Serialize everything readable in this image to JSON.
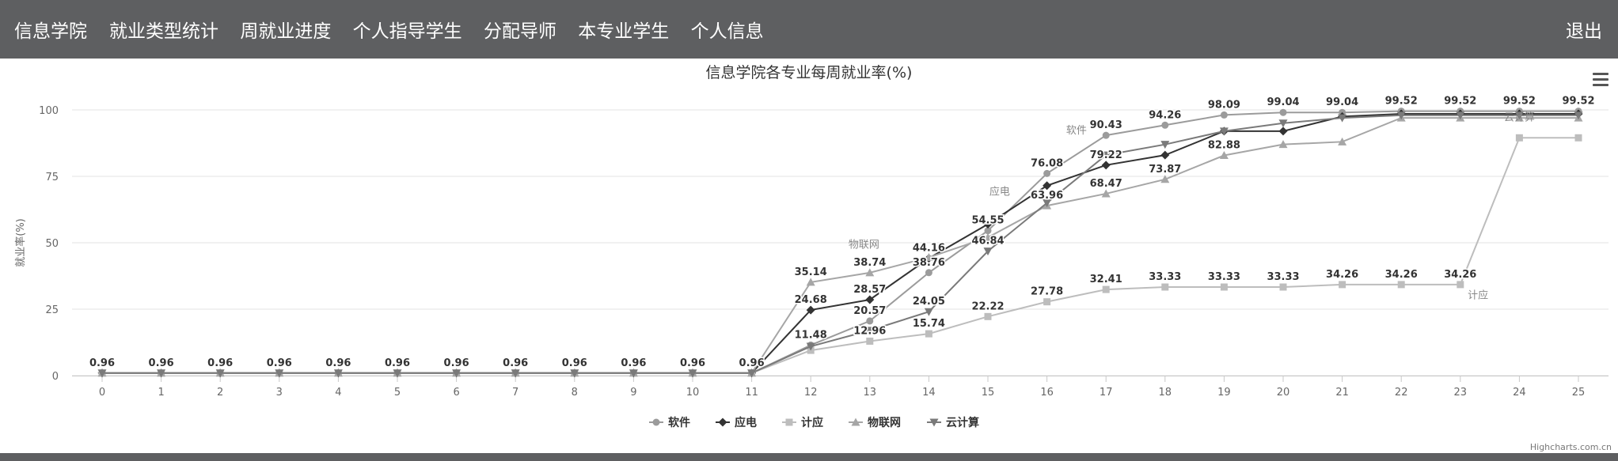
{
  "nav": {
    "brand": "信息学院",
    "items": [
      "就业类型统计",
      "周就业进度",
      "个人指导学生",
      "分配导师",
      "本专业学生",
      "个人信息"
    ],
    "logout": "退出"
  },
  "credits": "Highcharts.com.cn",
  "chart_data": {
    "type": "line",
    "title": "信息学院各专业每周就业率(%)",
    "xlabel": "",
    "ylabel": "就业率(%)",
    "ylim": [
      0,
      100
    ],
    "yticks": [
      0,
      25,
      50,
      75,
      100
    ],
    "x": [
      0,
      1,
      2,
      3,
      4,
      5,
      6,
      7,
      8,
      9,
      10,
      11,
      12,
      13,
      14,
      15,
      16,
      17,
      18,
      19,
      20,
      21,
      22,
      23,
      24,
      25
    ],
    "grid": true,
    "legend_position": "bottom-center",
    "series": [
      {
        "name": "软件",
        "color": "#9b9b9b",
        "marker": "circle",
        "values": [
          0.96,
          0.96,
          0.96,
          0.96,
          0.96,
          0.96,
          0.96,
          0.96,
          0.96,
          0.96,
          0.96,
          0.96,
          11.48,
          20.57,
          38.76,
          54.55,
          76.08,
          90.43,
          94.26,
          98.09,
          99.04,
          99.04,
          99.52,
          99.52,
          99.52,
          99.52
        ]
      },
      {
        "name": "应电",
        "color": "#333333",
        "marker": "diamond",
        "values": [
          0.96,
          0.96,
          0.96,
          0.96,
          0.96,
          0.96,
          0.96,
          0.96,
          0.96,
          0.96,
          0.96,
          0.96,
          24.68,
          28.57,
          44.16,
          57.0,
          71.5,
          79.22,
          83.0,
          92.0,
          92.0,
          97.5,
          98.5,
          98.5,
          98.5,
          98.5
        ]
      },
      {
        "name": "计应",
        "color": "#bdbdbd",
        "marker": "square",
        "values": [
          0.96,
          0.96,
          0.96,
          0.96,
          0.96,
          0.96,
          0.96,
          0.96,
          0.96,
          0.96,
          0.96,
          0.96,
          9.5,
          12.96,
          15.74,
          22.22,
          27.78,
          32.41,
          33.33,
          33.33,
          33.33,
          34.26,
          34.26,
          34.26,
          89.5,
          89.5
        ]
      },
      {
        "name": "物联网",
        "color": "#a6a6a6",
        "marker": "triangle",
        "values": [
          0.96,
          0.96,
          0.96,
          0.96,
          0.96,
          0.96,
          0.96,
          0.96,
          0.96,
          0.96,
          0.96,
          0.96,
          35.14,
          38.74,
          44.5,
          52.0,
          63.96,
          68.47,
          73.87,
          82.88,
          87.0,
          88.0,
          97.0,
          97.0,
          97.0,
          97.0
        ]
      },
      {
        "name": "云计算",
        "color": "#7a7a7a",
        "marker": "triangle-down",
        "values": [
          0.96,
          0.96,
          0.96,
          0.96,
          0.96,
          0.96,
          0.96,
          0.96,
          0.96,
          0.96,
          0.96,
          0.96,
          11.0,
          17.0,
          24.05,
          46.84,
          65.0,
          83.0,
          87.0,
          92.0,
          95.0,
          97.0,
          98.0,
          98.0,
          98.0,
          98.0
        ]
      }
    ],
    "data_labels": [
      {
        "x": 0,
        "text": "0.96",
        "value": 0.96
      },
      {
        "x": 1,
        "text": "0.96",
        "value": 0.96
      },
      {
        "x": 2,
        "text": "0.96",
        "value": 0.96
      },
      {
        "x": 3,
        "text": "0.96",
        "value": 0.96
      },
      {
        "x": 4,
        "text": "0.96",
        "value": 0.96
      },
      {
        "x": 5,
        "text": "0.96",
        "value": 0.96
      },
      {
        "x": 6,
        "text": "0.96",
        "value": 0.96
      },
      {
        "x": 7,
        "text": "0.96",
        "value": 0.96
      },
      {
        "x": 8,
        "text": "0.96",
        "value": 0.96
      },
      {
        "x": 9,
        "text": "0.96",
        "value": 0.96
      },
      {
        "x": 10,
        "text": "0.96",
        "value": 0.96
      },
      {
        "x": 11,
        "text": "0.96",
        "value": 0.96
      },
      {
        "x": 12,
        "text": "35.14",
        "value": 35.14
      },
      {
        "x": 12,
        "text": "24.68",
        "value": 24.68
      },
      {
        "x": 12,
        "text": "11.48",
        "value": 11.48
      },
      {
        "x": 13,
        "text": "38.74",
        "value": 38.74
      },
      {
        "x": 13,
        "text": "28.57",
        "value": 28.57
      },
      {
        "x": 13,
        "text": "20.57",
        "value": 20.57
      },
      {
        "x": 13,
        "text": "12.96",
        "value": 12.96
      },
      {
        "x": 14,
        "text": "44.16",
        "value": 44.16
      },
      {
        "x": 14,
        "text": "38.76",
        "value": 38.76
      },
      {
        "x": 14,
        "text": "24.05",
        "value": 24.05
      },
      {
        "x": 14,
        "text": "15.74",
        "value": 15.74
      },
      {
        "x": 15,
        "text": "54.55",
        "value": 54.55
      },
      {
        "x": 15,
        "text": "46.84",
        "value": 46.84
      },
      {
        "x": 15,
        "text": "22.22",
        "value": 22.22
      },
      {
        "x": 16,
        "text": "76.08",
        "value": 76.08
      },
      {
        "x": 16,
        "text": "63.96",
        "value": 63.96
      },
      {
        "x": 16,
        "text": "27.78",
        "value": 27.78
      },
      {
        "x": 17,
        "text": "90.43",
        "value": 90.43
      },
      {
        "x": 17,
        "text": "79.22",
        "value": 79.22
      },
      {
        "x": 17,
        "text": "68.47",
        "value": 68.47
      },
      {
        "x": 17,
        "text": "32.41",
        "value": 32.41
      },
      {
        "x": 18,
        "text": "94.26",
        "value": 94.26
      },
      {
        "x": 18,
        "text": "73.87",
        "value": 73.87
      },
      {
        "x": 18,
        "text": "33.33",
        "value": 33.33
      },
      {
        "x": 19,
        "text": "98.09",
        "value": 98.09
      },
      {
        "x": 19,
        "text": "82.88",
        "value": 82.88
      },
      {
        "x": 19,
        "text": "33.33",
        "value": 33.33
      },
      {
        "x": 20,
        "text": "99.04",
        "value": 99.04
      },
      {
        "x": 20,
        "text": "33.33",
        "value": 33.33
      },
      {
        "x": 21,
        "text": "99.04",
        "value": 99.04
      },
      {
        "x": 21,
        "text": "34.26",
        "value": 34.26
      },
      {
        "x": 22,
        "text": "99.52",
        "value": 99.52
      },
      {
        "x": 22,
        "text": "34.26",
        "value": 34.26
      },
      {
        "x": 23,
        "text": "99.52",
        "value": 99.52
      },
      {
        "x": 23,
        "text": "34.26",
        "value": 34.26
      },
      {
        "x": 24,
        "text": "99.52",
        "value": 99.52
      },
      {
        "x": 25,
        "text": "99.52",
        "value": 99.52
      }
    ],
    "series_labels": [
      {
        "text": "软件",
        "x": 16.5,
        "value": 91
      },
      {
        "text": "应电",
        "x": 15.2,
        "value": 68
      },
      {
        "text": "物联网",
        "x": 12.9,
        "value": 48
      },
      {
        "text": "计应",
        "x": 23.3,
        "value": 29
      },
      {
        "text": "云计算",
        "x": 24.0,
        "value": 96
      }
    ]
  }
}
